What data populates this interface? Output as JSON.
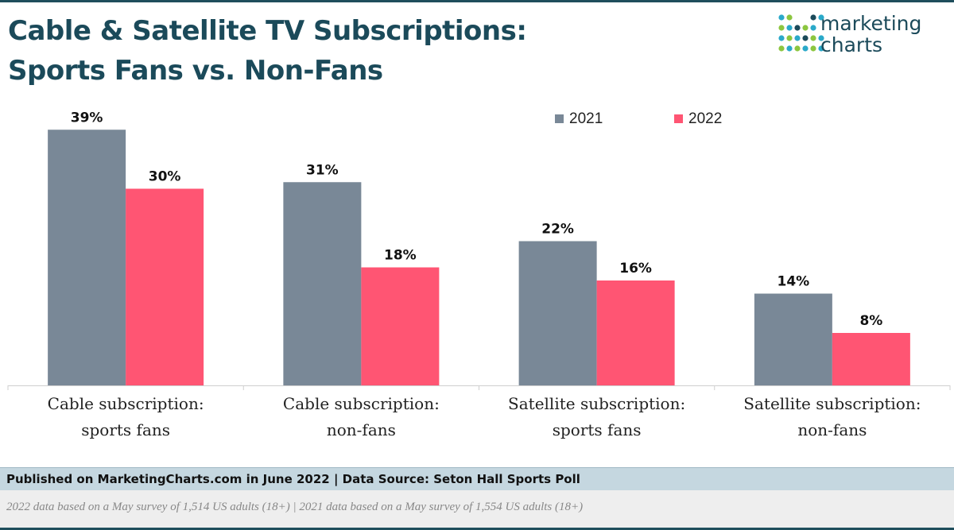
{
  "header": {
    "title_line1": "Cable & Satellite TV Subscriptions:",
    "title_line2": "Sports Fans vs. Non-Fans"
  },
  "logo": {
    "line1": "marketing",
    "line2": "charts",
    "colors": [
      "#2aa9c9",
      "#8cc63f",
      "#1b4a5a"
    ]
  },
  "chart_data": {
    "type": "bar",
    "categories": [
      [
        "Cable subscription:",
        "sports fans"
      ],
      [
        "Cable subscription:",
        "non-fans"
      ],
      [
        "Satellite subscription:",
        "sports fans"
      ],
      [
        "Satellite subscription:",
        "non-fans"
      ]
    ],
    "series": [
      {
        "name": "2021",
        "values": [
          39,
          31,
          22,
          14
        ],
        "color": "#798897"
      },
      {
        "name": "2022",
        "values": [
          30,
          18,
          16,
          8
        ],
        "color": "#ff5573"
      }
    ],
    "value_suffix": "%",
    "ylim": [
      0,
      40
    ],
    "legend_position": "top-right",
    "grid": false
  },
  "footer": {
    "source": "Published on MarketingCharts.com in June 2022 | Data Source: Seton Hall Sports Poll",
    "note": "2022 data based on a May survey of 1,514 US adults (18+) | 2021 data based on a May survey of 1,554 US adults (18+)"
  }
}
